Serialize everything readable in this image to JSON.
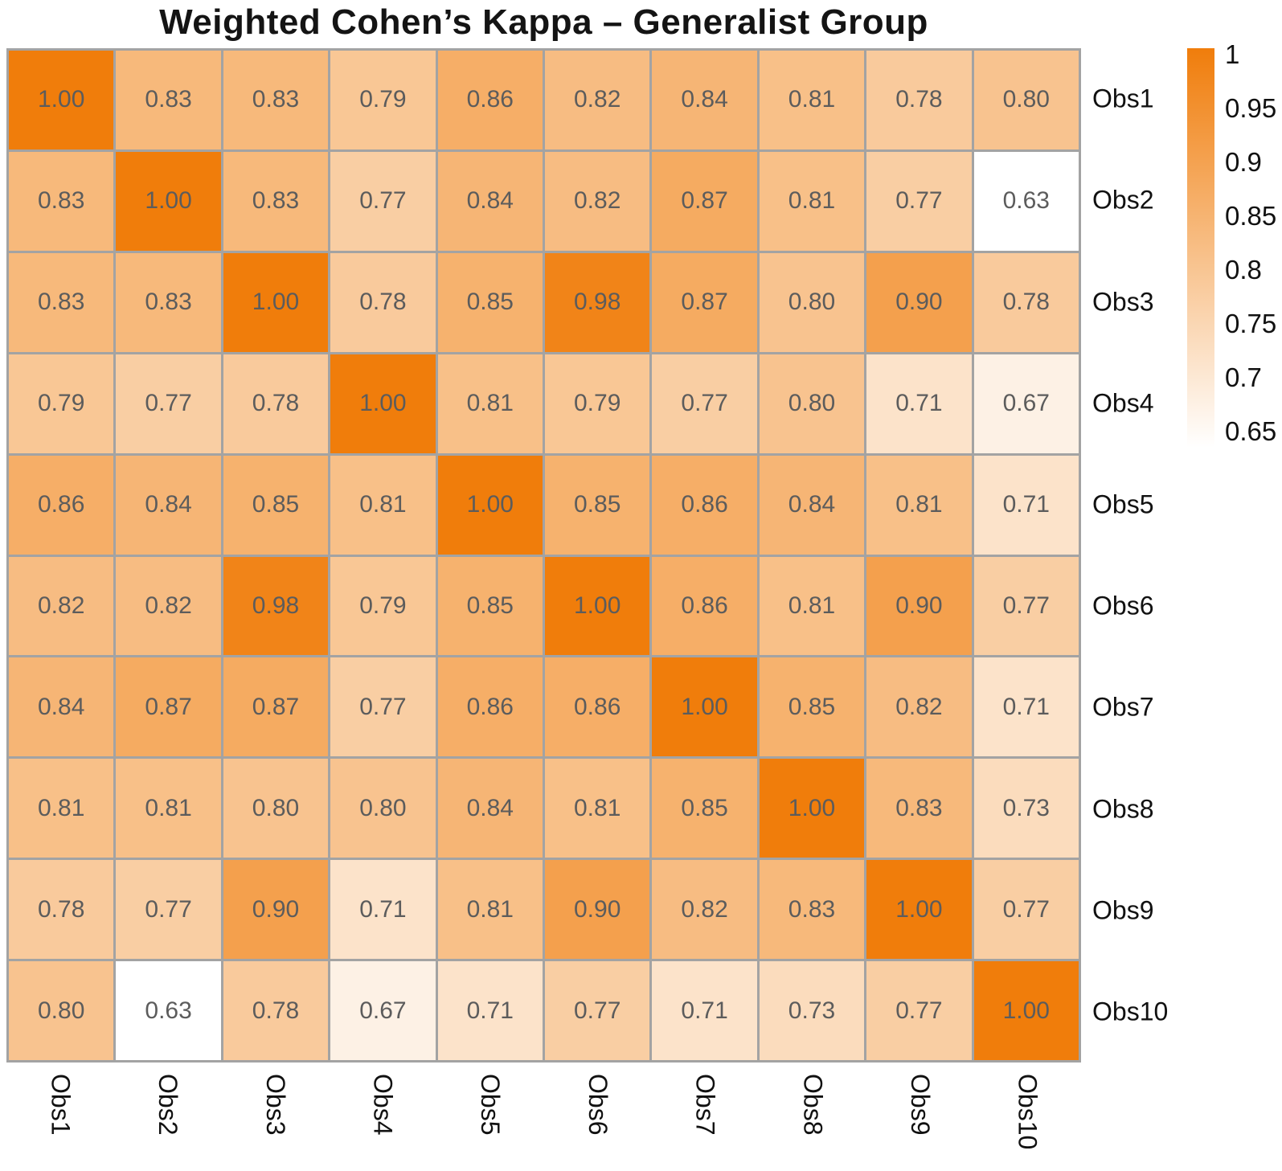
{
  "title": "Weighted Cohen’s Kappa – Generalist Group",
  "chart_data": {
    "type": "heatmap",
    "title": "Weighted Cohen’s Kappa – Generalist Group",
    "x_categories": [
      "Obs1",
      "Obs2",
      "Obs3",
      "Obs4",
      "Obs5",
      "Obs6",
      "Obs7",
      "Obs8",
      "Obs9",
      "Obs10"
    ],
    "y_categories": [
      "Obs1",
      "Obs2",
      "Obs3",
      "Obs4",
      "Obs5",
      "Obs6",
      "Obs7",
      "Obs8",
      "Obs9",
      "Obs10"
    ],
    "matrix": [
      [
        1.0,
        0.83,
        0.83,
        0.79,
        0.86,
        0.82,
        0.84,
        0.81,
        0.78,
        0.8
      ],
      [
        0.83,
        1.0,
        0.83,
        0.77,
        0.84,
        0.82,
        0.87,
        0.81,
        0.77,
        0.63
      ],
      [
        0.83,
        0.83,
        1.0,
        0.78,
        0.85,
        0.98,
        0.87,
        0.8,
        0.9,
        0.78
      ],
      [
        0.79,
        0.77,
        0.78,
        1.0,
        0.81,
        0.79,
        0.77,
        0.8,
        0.71,
        0.67
      ],
      [
        0.86,
        0.84,
        0.85,
        0.81,
        1.0,
        0.85,
        0.86,
        0.84,
        0.81,
        0.71
      ],
      [
        0.82,
        0.82,
        0.98,
        0.79,
        0.85,
        1.0,
        0.86,
        0.81,
        0.9,
        0.77
      ],
      [
        0.84,
        0.87,
        0.87,
        0.77,
        0.86,
        0.86,
        1.0,
        0.85,
        0.82,
        0.71
      ],
      [
        0.81,
        0.81,
        0.8,
        0.8,
        0.84,
        0.81,
        0.85,
        1.0,
        0.83,
        0.73
      ],
      [
        0.78,
        0.77,
        0.9,
        0.71,
        0.81,
        0.9,
        0.82,
        0.83,
        1.0,
        0.77
      ],
      [
        0.8,
        0.63,
        0.78,
        0.67,
        0.71,
        0.77,
        0.71,
        0.73,
        0.77,
        1.0
      ]
    ],
    "value_decimals": 2,
    "cell_text_color": "#5c5c5c",
    "grid_line_color": "#a3a3a3",
    "colormap": {
      "low_color": "#ffffff",
      "high_color": "#f07d0b",
      "domain": [
        0.63,
        1.0
      ]
    },
    "colorbar": {
      "position": "right",
      "tick_labels": [
        "1",
        "0.95",
        "0.9",
        "0.85",
        "0.8",
        "0.75",
        "0.7",
        "0.65"
      ],
      "tick_values": [
        1,
        0.95,
        0.9,
        0.85,
        0.8,
        0.75,
        0.7,
        0.65
      ]
    },
    "y_axis_side": "right",
    "x_label_rotation_deg": 90
  }
}
